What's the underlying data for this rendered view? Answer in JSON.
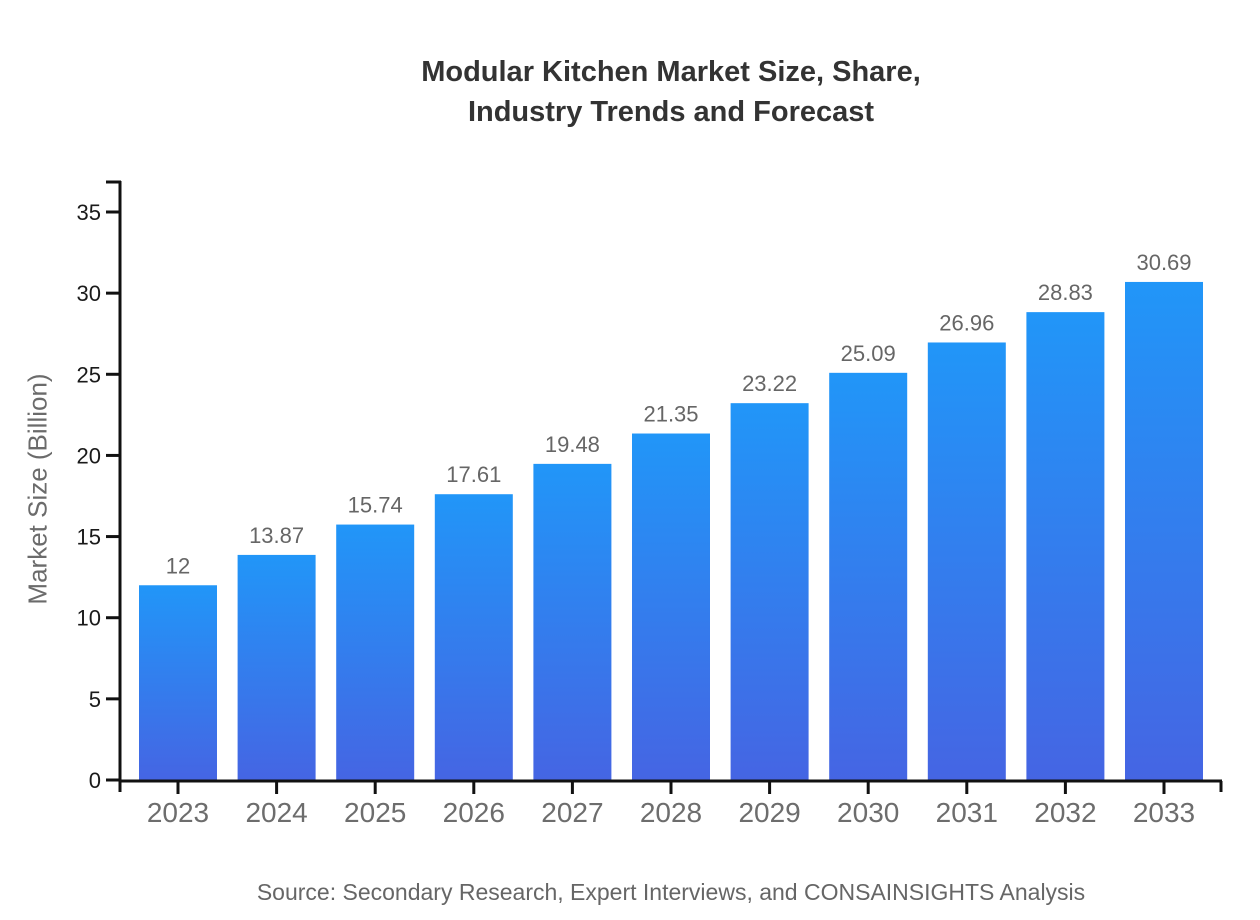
{
  "title": {
    "line1": "Modular Kitchen Market Size, Share,",
    "line2": "Industry Trends and Forecast"
  },
  "source": "Source: Secondary Research, Expert Interviews, and CONSAINSIGHTS Analysis",
  "chart_data": {
    "type": "bar",
    "title": "Modular Kitchen Market Size, Share, Industry Trends and Forecast",
    "categories": [
      "2023",
      "2024",
      "2025",
      "2026",
      "2027",
      "2028",
      "2029",
      "2030",
      "2031",
      "2032",
      "2033"
    ],
    "values": [
      12,
      13.87,
      15.74,
      17.61,
      19.48,
      21.35,
      23.22,
      25.09,
      26.96,
      28.83,
      30.69
    ],
    "value_labels": [
      "12",
      "13.87",
      "15.74",
      "17.61",
      "19.48",
      "21.35",
      "23.22",
      "25.09",
      "26.96",
      "28.83",
      "30.69"
    ],
    "xlabel": "",
    "ylabel": "Market Size (Billion)",
    "ylim": [
      0,
      35
    ],
    "yticks": [
      0,
      5,
      10,
      15,
      20,
      25,
      30,
      35
    ],
    "grid": false,
    "legend": false,
    "colors": {
      "bar_gradient_top": "#2196f8",
      "bar_gradient_bottom": "#4565e3",
      "axis": "#111111",
      "y_tick_label": "#1a1a1a",
      "x_tick_label": "#6d6d6d",
      "value_label": "#666666",
      "title": "#333333",
      "y_axis_title": "#6b6b6b",
      "source": "#666666"
    }
  }
}
